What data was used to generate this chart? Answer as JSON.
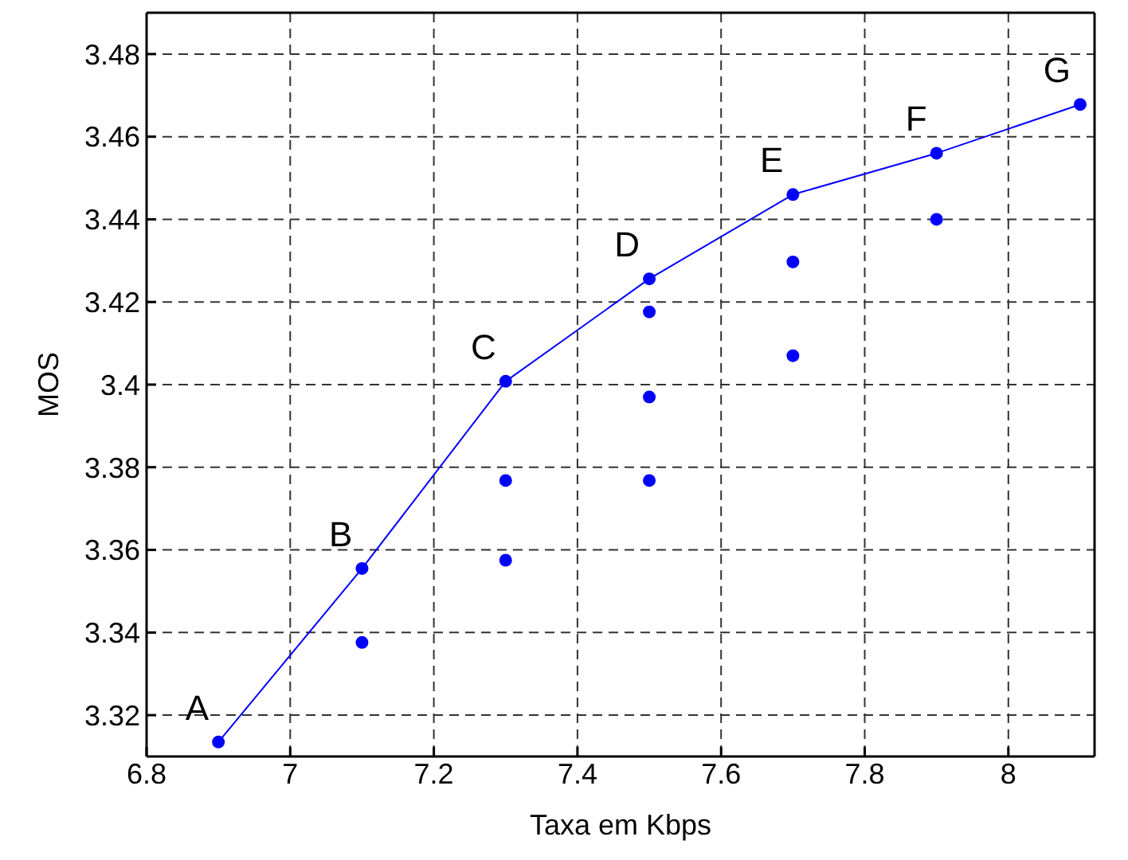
{
  "chart_data": {
    "type": "line",
    "xlabel": "Taxa em Kbps",
    "ylabel": "MOS",
    "xlim": [
      6.8,
      8.12
    ],
    "xticks": [
      6.8,
      7,
      7.2,
      7.4,
      7.6,
      7.8,
      8
    ],
    "ylim": [
      3.31,
      3.49
    ],
    "yticks": [
      3.32,
      3.34,
      3.36,
      3.38,
      3.4,
      3.42,
      3.44,
      3.46,
      3.48
    ],
    "grid": true,
    "marker": "circle",
    "line_style": "solid",
    "series": [
      {
        "color": "#0000ff",
        "x": [
          6.9,
          7.1,
          7.3,
          7.5,
          7.7,
          7.9,
          8.1
        ],
        "values": [
          3.3135,
          3.3555,
          3.4008,
          3.4256,
          3.446,
          3.456,
          3.4678
        ]
      },
      {
        "type": "scatter",
        "color": "#0000ff",
        "x": [
          7.1,
          7.3,
          7.3,
          7.5,
          7.5,
          7.5,
          7.7,
          7.7,
          7.9
        ],
        "values": [
          3.3376,
          3.3768,
          3.3575,
          3.4176,
          3.397,
          3.3768,
          3.4297,
          3.407,
          3.44
        ]
      }
    ],
    "annotations": [
      {
        "text": "A",
        "x": 6.9,
        "y": 3.3135
      },
      {
        "text": "B",
        "x": 7.1,
        "y": 3.3555
      },
      {
        "text": "C",
        "x": 7.3,
        "y": 3.4008
      },
      {
        "text": "D",
        "x": 7.5,
        "y": 3.4256
      },
      {
        "text": "E",
        "x": 7.7,
        "y": 3.446
      },
      {
        "text": "F",
        "x": 7.9,
        "y": 3.456
      },
      {
        "text": "G",
        "x": 8.1,
        "y": 3.4678
      }
    ]
  }
}
